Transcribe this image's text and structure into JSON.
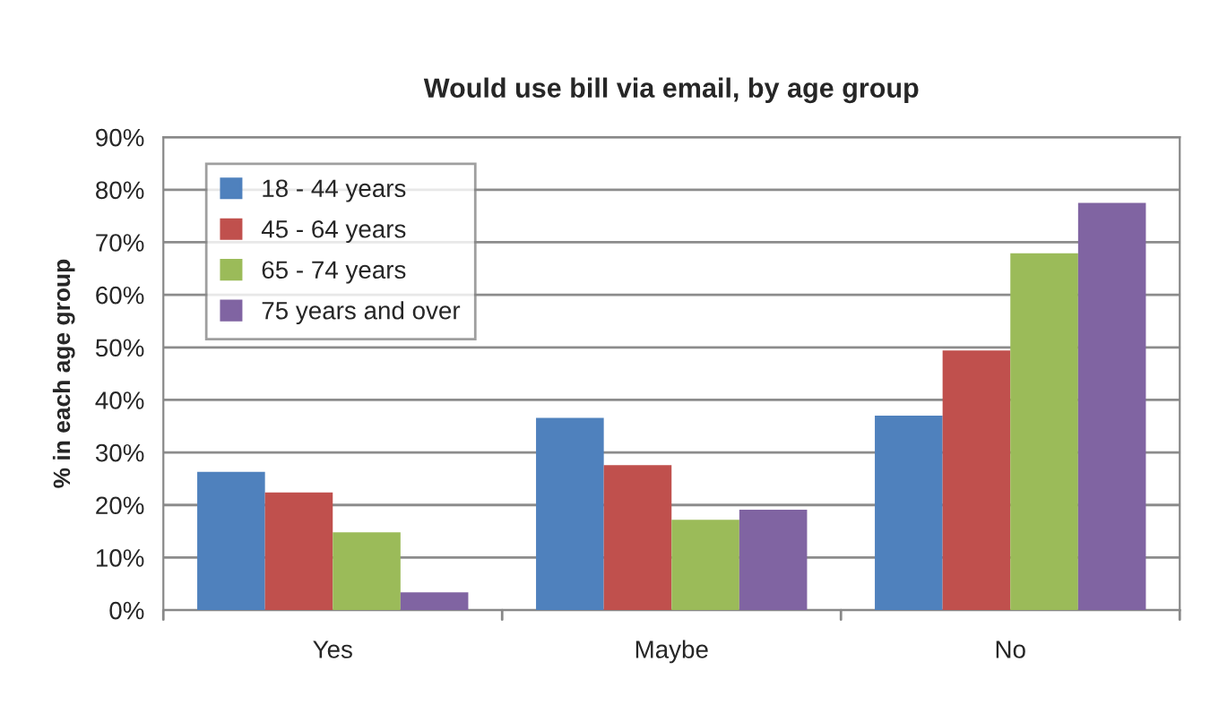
{
  "chart_data": {
    "type": "bar",
    "title": "Would use bill via email, by age group",
    "ylabel": "% in each age group",
    "categories": [
      "Yes",
      "Maybe",
      "No"
    ],
    "series": [
      {
        "name": "18 - 44 years",
        "color": "#4f81bd",
        "values": [
          26.3,
          36.6,
          37.0
        ]
      },
      {
        "name": "45 - 64 years",
        "color": "#c0504d",
        "values": [
          22.4,
          27.6,
          49.4
        ]
      },
      {
        "name": "65 - 74 years",
        "color": "#9bbb59",
        "values": [
          14.8,
          17.2,
          67.9
        ]
      },
      {
        "name": "75 years and over",
        "color": "#8064a2",
        "values": [
          3.4,
          19.1,
          77.5
        ]
      }
    ],
    "ylim": [
      0,
      90
    ],
    "yticks": [
      {
        "value": 0,
        "label": "0%"
      },
      {
        "value": 10,
        "label": "10%"
      },
      {
        "value": 20,
        "label": "20%"
      },
      {
        "value": 30,
        "label": "30%"
      },
      {
        "value": 40,
        "label": "40%"
      },
      {
        "value": 50,
        "label": "50%"
      },
      {
        "value": 60,
        "label": "60%"
      },
      {
        "value": 70,
        "label": "70%"
      },
      {
        "value": 80,
        "label": "80%"
      },
      {
        "value": 90,
        "label": "90%"
      }
    ],
    "grid": "y",
    "legend": "top left"
  }
}
